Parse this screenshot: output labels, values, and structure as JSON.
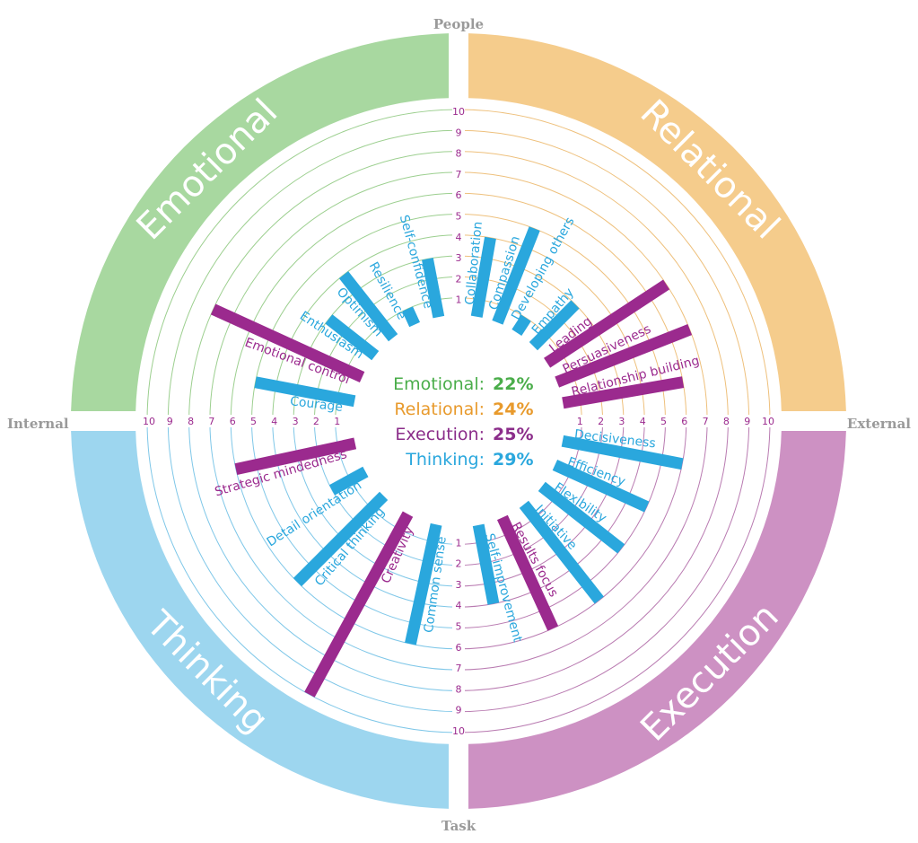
{
  "chart_data": {
    "type": "radial-bar",
    "axis_labels": {
      "top": "People",
      "bottom": "Task",
      "left": "Internal",
      "right": "External"
    },
    "scale": [
      1,
      10
    ],
    "quadrants": [
      {
        "name": "Emotional",
        "percent": "22%",
        "color": "#4aad4a",
        "band_color": "#a8d8a0",
        "text_color": "#2aa7dd",
        "items": [
          {
            "label": "Self-confidence",
            "value": 3,
            "highlight": false
          },
          {
            "label": "Resilience",
            "value": 1,
            "highlight": false
          },
          {
            "label": "Optimism",
            "value": 4,
            "highlight": false
          },
          {
            "label": "Enthusiasm",
            "value": 3,
            "highlight": false
          },
          {
            "label": "Emotional control",
            "value": 8,
            "highlight": true
          },
          {
            "label": "Courage",
            "value": 5,
            "highlight": false
          }
        ]
      },
      {
        "name": "Relational",
        "percent": "24%",
        "color": "#e89a2c",
        "band_color": "#f5cc8c",
        "text_color": "#2aa7dd",
        "items": [
          {
            "label": "Collaboration",
            "value": 4,
            "highlight": false
          },
          {
            "label": "Compassion",
            "value": 5,
            "highlight": false
          },
          {
            "label": "Developing others",
            "value": 1,
            "highlight": false
          },
          {
            "label": "Empathy",
            "value": 3,
            "highlight": false
          },
          {
            "label": "Leading",
            "value": 7,
            "highlight": true
          },
          {
            "label": "Persuasiveness",
            "value": 7,
            "highlight": true
          },
          {
            "label": "Relationship building",
            "value": 6,
            "highlight": true
          }
        ]
      },
      {
        "name": "Execution",
        "percent": "25%",
        "color": "#8b2d8a",
        "band_color": "#cd91c3",
        "text_color": "#2aa7dd",
        "items": [
          {
            "label": "Decisiveness",
            "value": 6,
            "highlight": false
          },
          {
            "label": "Efficiency",
            "value": 5,
            "highlight": false
          },
          {
            "label": "Flexibility",
            "value": 5,
            "highlight": false
          },
          {
            "label": "Initiative",
            "value": 6,
            "highlight": false
          },
          {
            "label": "Results focus",
            "value": 6,
            "highlight": true
          },
          {
            "label": "Self-improvement",
            "value": 4,
            "highlight": false
          }
        ]
      },
      {
        "name": "Thinking",
        "percent": "29%",
        "color": "#2aa7dd",
        "band_color": "#9dd6ef",
        "text_color": "#2aa7dd",
        "items": [
          {
            "label": "Common sense",
            "value": 6,
            "highlight": false
          },
          {
            "label": "Creativity",
            "value": 10,
            "highlight": true
          },
          {
            "label": "Critical thinking",
            "value": 6,
            "highlight": false
          },
          {
            "label": "Detail orientation",
            "value": 2,
            "highlight": false
          },
          {
            "label": "Strategic mindedness",
            "value": 6,
            "highlight": true
          }
        ]
      }
    ],
    "highlight_color": "#9b2a8e",
    "bar_color": "#2aa7dd"
  }
}
